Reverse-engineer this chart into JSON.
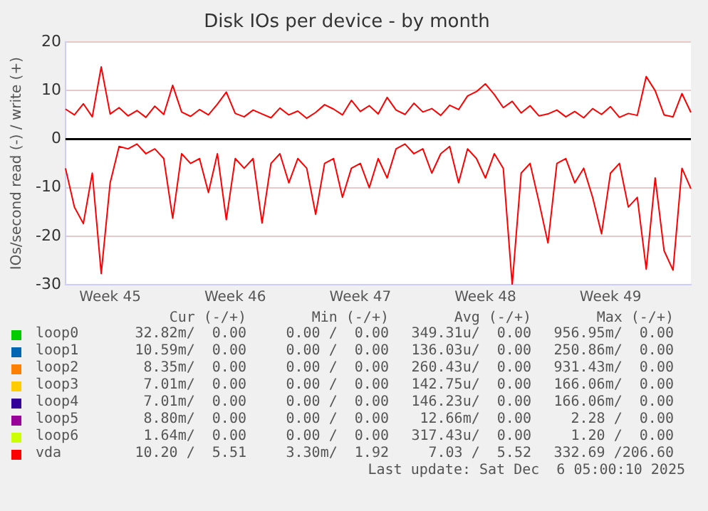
{
  "chart_data": {
    "type": "line",
    "title": "Disk IOs per device - by month",
    "ylabel": "IOs/second read (-) / write (+)",
    "categories": [
      null,
      null,
      null,
      null,
      null,
      "Week 45",
      null,
      null,
      null,
      null,
      null,
      null,
      null,
      null,
      null,
      null,
      null,
      null,
      null,
      "Week 46",
      null,
      null,
      null,
      null,
      null,
      null,
      null,
      null,
      null,
      null,
      null,
      null,
      null,
      "Week 47",
      null,
      null,
      null,
      null,
      null,
      null,
      null,
      null,
      null,
      null,
      null,
      null,
      null,
      "Week 48",
      null,
      null,
      null,
      null,
      null,
      null,
      null,
      null,
      null,
      null,
      null,
      null,
      null,
      "Week 49",
      null,
      null,
      null,
      null,
      null,
      null,
      null,
      null,
      null
    ],
    "ylim": [
      -30,
      20
    ],
    "yticks": [
      -30,
      -20,
      -10,
      0,
      10,
      20
    ],
    "grid": "y",
    "legend": "bottom",
    "ref_lines": [
      {
        "axis": "y",
        "value": 0,
        "color": "#000000"
      }
    ],
    "series": [
      {
        "name": "loop0",
        "color": "#00cc00",
        "values": [
          null,
          null,
          null,
          null,
          null,
          null,
          null,
          null,
          null,
          null,
          null,
          null,
          null,
          null,
          null,
          null,
          null,
          null,
          null,
          null,
          null,
          null,
          null,
          null,
          null,
          null,
          null,
          null,
          null,
          null,
          null,
          null,
          null,
          null,
          null,
          null,
          null,
          null,
          null,
          null,
          null,
          null,
          null,
          null,
          null,
          null,
          null,
          null,
          null,
          null,
          null,
          null,
          null,
          null,
          null,
          null,
          null,
          null,
          null,
          null,
          null,
          null,
          null,
          null,
          null,
          null,
          null,
          null,
          null,
          null,
          null
        ]
      },
      {
        "name": "loop1",
        "color": "#0066b3",
        "values": [
          null,
          null,
          null,
          null,
          null,
          null,
          null,
          null,
          null,
          null,
          null,
          null,
          null,
          null,
          null,
          null,
          null,
          null,
          null,
          null,
          null,
          null,
          null,
          null,
          null,
          null,
          null,
          null,
          null,
          null,
          null,
          null,
          null,
          null,
          null,
          null,
          null,
          null,
          null,
          null,
          null,
          null,
          null,
          null,
          null,
          null,
          null,
          null,
          null,
          null,
          null,
          null,
          null,
          null,
          null,
          null,
          null,
          null,
          null,
          null,
          null,
          null,
          null,
          null,
          null,
          null,
          null,
          null,
          null,
          null,
          null
        ]
      },
      {
        "name": "loop2",
        "color": "#ff8000",
        "values": [
          null,
          null,
          null,
          null,
          null,
          null,
          null,
          null,
          null,
          null,
          null,
          null,
          null,
          null,
          null,
          null,
          null,
          null,
          null,
          null,
          null,
          null,
          null,
          null,
          null,
          null,
          null,
          null,
          null,
          null,
          null,
          null,
          null,
          null,
          null,
          null,
          null,
          null,
          null,
          null,
          null,
          null,
          null,
          null,
          null,
          null,
          null,
          null,
          null,
          null,
          null,
          null,
          null,
          null,
          null,
          null,
          null,
          null,
          null,
          null,
          null,
          null,
          null,
          null,
          null,
          null,
          null,
          null,
          null,
          null,
          null
        ]
      },
      {
        "name": "loop3",
        "color": "#ffcc00",
        "values": [
          null,
          null,
          null,
          null,
          null,
          null,
          null,
          null,
          null,
          null,
          null,
          null,
          null,
          null,
          null,
          null,
          null,
          null,
          null,
          null,
          null,
          null,
          null,
          null,
          null,
          null,
          null,
          null,
          null,
          null,
          null,
          null,
          null,
          null,
          null,
          null,
          null,
          null,
          null,
          null,
          null,
          null,
          null,
          null,
          null,
          null,
          null,
          null,
          null,
          null,
          null,
          null,
          null,
          null,
          null,
          null,
          null,
          null,
          null,
          null,
          null,
          null,
          null,
          null,
          null,
          null,
          null,
          null,
          null,
          null,
          null
        ]
      },
      {
        "name": "loop4",
        "color": "#330099",
        "values": [
          null,
          null,
          null,
          null,
          null,
          null,
          null,
          null,
          null,
          null,
          null,
          null,
          null,
          null,
          null,
          null,
          null,
          null,
          null,
          null,
          null,
          null,
          null,
          null,
          null,
          null,
          null,
          null,
          null,
          null,
          null,
          null,
          null,
          null,
          null,
          null,
          null,
          null,
          null,
          null,
          null,
          null,
          null,
          null,
          null,
          null,
          null,
          null,
          null,
          null,
          null,
          null,
          null,
          null,
          null,
          null,
          null,
          null,
          null,
          null,
          null,
          null,
          null,
          null,
          null,
          null,
          null,
          null,
          null,
          null,
          null
        ]
      },
      {
        "name": "loop5",
        "color": "#990099",
        "values": [
          null,
          null,
          null,
          null,
          null,
          null,
          null,
          null,
          null,
          null,
          null,
          null,
          null,
          null,
          null,
          null,
          null,
          null,
          null,
          null,
          null,
          null,
          null,
          null,
          null,
          null,
          null,
          null,
          null,
          null,
          null,
          null,
          null,
          null,
          null,
          null,
          null,
          null,
          null,
          null,
          null,
          null,
          null,
          null,
          null,
          null,
          null,
          null,
          null,
          null,
          null,
          null,
          null,
          null,
          null,
          null,
          null,
          null,
          null,
          null,
          null,
          null,
          null,
          null,
          null,
          null,
          null,
          null,
          null,
          null,
          null
        ]
      },
      {
        "name": "loop6",
        "color": "#ccff00",
        "values": [
          null,
          null,
          null,
          null,
          null,
          null,
          null,
          null,
          null,
          null,
          null,
          null,
          null,
          null,
          null,
          null,
          null,
          null,
          null,
          null,
          null,
          null,
          null,
          null,
          null,
          null,
          null,
          null,
          null,
          null,
          null,
          null,
          null,
          null,
          null,
          null,
          null,
          null,
          null,
          null,
          null,
          null,
          null,
          null,
          null,
          null,
          null,
          null,
          null,
          null,
          null,
          null,
          null,
          null,
          null,
          null,
          null,
          null,
          null,
          null,
          null,
          null,
          null,
          null,
          null,
          null,
          null,
          null,
          null,
          null,
          null
        ]
      },
      {
        "name": "vda",
        "color": "#ff0000",
        "values": [
          6.2,
          5.0,
          7.3,
          4.6,
          14.9,
          5.2,
          6.5,
          4.8,
          5.9,
          4.5,
          6.8,
          5.1,
          11.1,
          5.6,
          4.7,
          6.1,
          5.0,
          7.2,
          9.7,
          5.3,
          4.6,
          6.0,
          5.2,
          4.4,
          6.4,
          5.0,
          5.8,
          4.3,
          5.5,
          7.1,
          6.2,
          5.0,
          8.0,
          5.7,
          6.9,
          5.2,
          8.6,
          6.0,
          5.1,
          7.4,
          5.6,
          6.3,
          4.9,
          7.0,
          6.1,
          8.9,
          9.8,
          11.4,
          9.2,
          6.5,
          7.8,
          5.4,
          6.9,
          4.8,
          5.2,
          6.0,
          4.6,
          5.7,
          4.4,
          6.3,
          5.1,
          6.7,
          4.5,
          5.3,
          4.9,
          12.9,
          10.0,
          5.0,
          4.6,
          9.4,
          5.5
        ]
      },
      {
        "color": "#ff0000",
        "values": [
          -6,
          -14,
          -17.4,
          -7,
          -27.7,
          -9,
          -1.5,
          -2,
          -1,
          -3,
          -2,
          -4,
          -16.3,
          -3,
          -5,
          -4,
          -11,
          -3,
          -16.6,
          -4,
          -6,
          -4,
          -17.3,
          -5,
          -3,
          -9,
          -4,
          -6,
          -15.5,
          -5,
          -4,
          -12,
          -6,
          -5,
          -10,
          -4,
          -8,
          -2,
          -1,
          -3,
          -2,
          -7,
          -3,
          -1.5,
          -9,
          -2,
          -4,
          -8,
          -3,
          -6,
          -30,
          -7,
          -5,
          -13,
          -21.4,
          -5,
          -4,
          -9,
          -6,
          -12,
          -19.5,
          -7,
          -5,
          -14,
          -12,
          -26.8,
          -8,
          -23,
          -27,
          -6,
          -10.2
        ]
      }
    ],
    "annotations": [
      "Cur (-/+)",
      "Min (-/+)",
      "Avg (-/+)",
      "Max (-/+)",
      "32.82m/  0.00",
      "0.00 /  0.00",
      "349.31u/  0.00",
      "956.95m/  0.00",
      "10.59m/  0.00",
      "0.00 /  0.00",
      "136.03u/  0.00",
      "250.86m/  0.00",
      "8.35m/  0.00",
      "0.00 /  0.00",
      "260.43u/  0.00",
      "931.43m/  0.00",
      "7.01m/  0.00",
      "0.00 /  0.00",
      "142.75u/  0.00",
      "166.06m/  0.00",
      "7.01m/  0.00",
      "0.00 /  0.00",
      "146.23u/  0.00",
      "166.06m/  0.00",
      "8.80m/  0.00",
      "0.00 /  0.00",
      "12.66m/  0.00",
      "2.28 /  0.00",
      "1.64m/  0.00",
      "0.00 /  0.00",
      "317.43u/  0.00",
      "1.20 /  0.00",
      "10.20 /  5.51",
      "3.30m/  1.92",
      "7.03 /  5.52",
      "332.69 /206.60",
      "Last update: Sat Dec  6 05:00:10 2025"
    ]
  }
}
